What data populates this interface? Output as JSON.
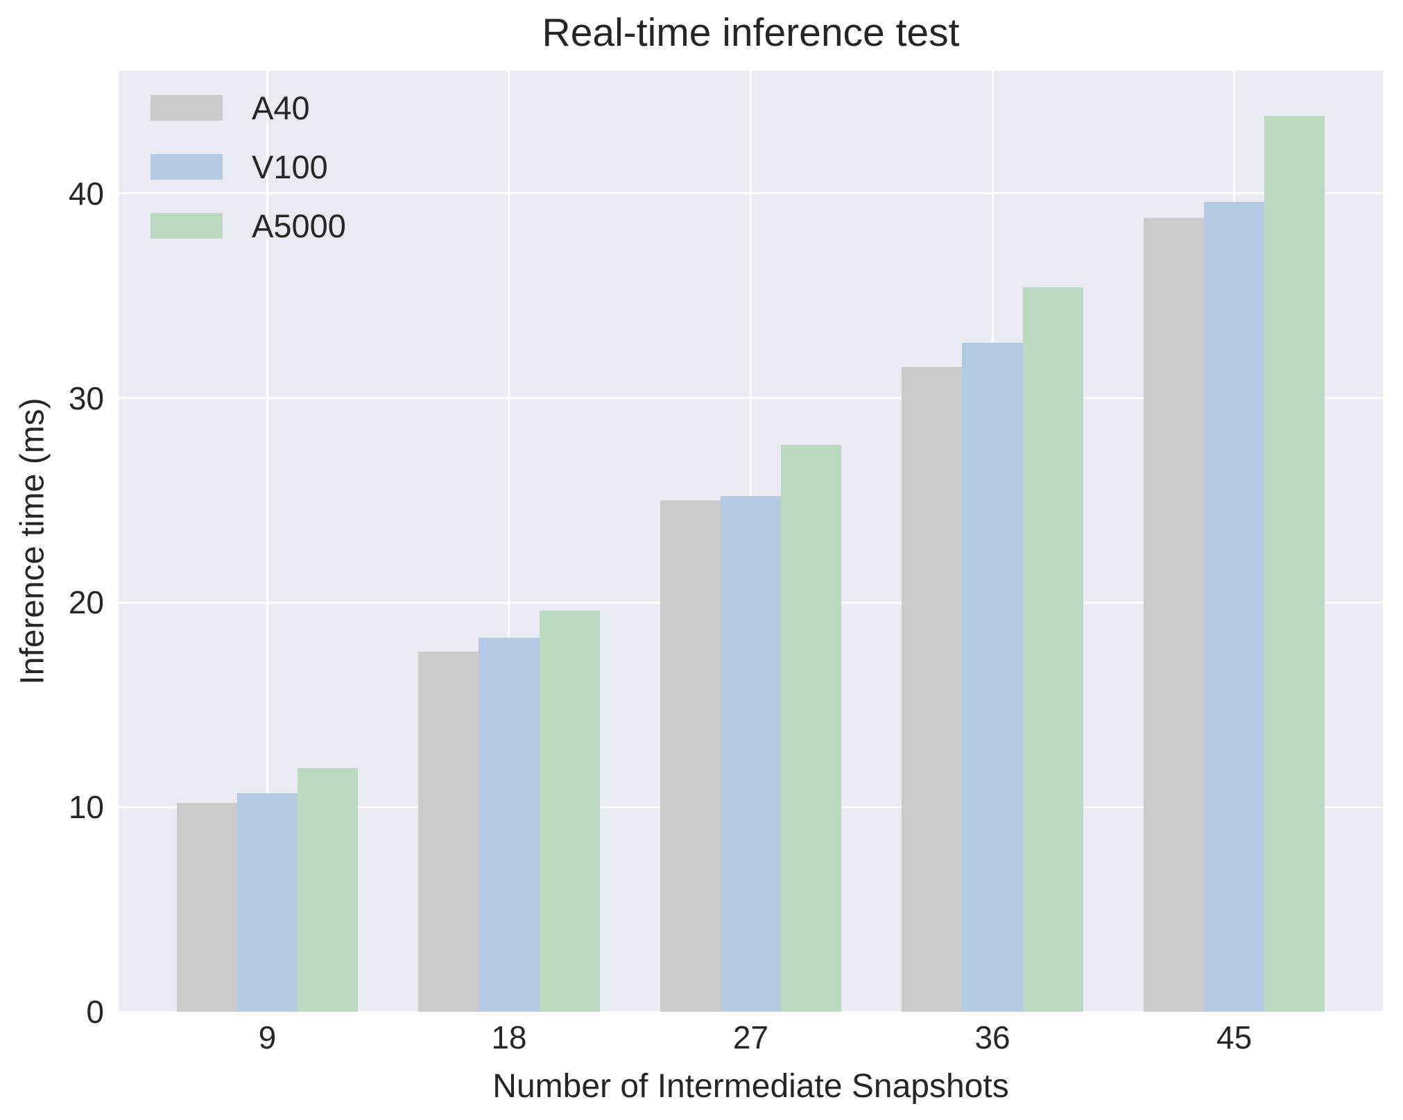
{
  "chart_data": {
    "type": "bar",
    "title": "Real-time inference test",
    "xlabel": "Number of Intermediate Snapshots",
    "ylabel": "Inference time (ms)",
    "categories": [
      "9",
      "18",
      "27",
      "36",
      "45"
    ],
    "series": [
      {
        "name": "A40",
        "color": "#cccbcc",
        "values": [
          10.2,
          17.6,
          25.0,
          31.5,
          38.8
        ]
      },
      {
        "name": "V100",
        "color": "#b4c9e2",
        "values": [
          10.7,
          18.3,
          25.2,
          32.7,
          39.6
        ]
      },
      {
        "name": "A5000",
        "color": "#bbd8c1",
        "values": [
          11.9,
          19.6,
          27.7,
          35.4,
          43.8
        ]
      }
    ],
    "ylim": [
      0,
      46
    ],
    "yticks": [
      0,
      10,
      20,
      30,
      40
    ],
    "grid": true,
    "legend_position": "upper left",
    "plot_background": "#eaeaf2",
    "grid_color": "#ffffff",
    "text_color": "#262626"
  }
}
